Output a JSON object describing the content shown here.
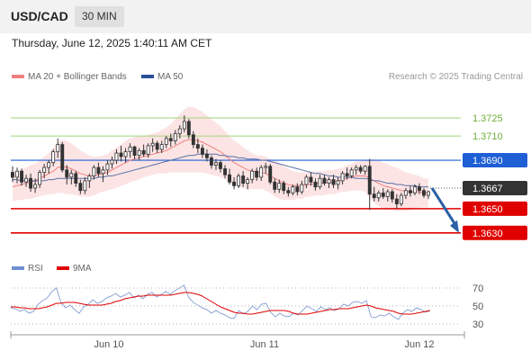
{
  "header": {
    "symbol": "USD/CAD",
    "timeframe": "30 MIN",
    "timestamp": "Thursday, June 12, 2025 1:40:11 AM CET"
  },
  "legend": {
    "ma20_label": "MA 20 + Bollinger Bands",
    "ma50_label": "MA 50",
    "credit": "Research © 2025 Trading Central",
    "rsi_label": "RSI",
    "rsi_ma_label": "9MA"
  },
  "colors": {
    "bull_candle": "#ffffff",
    "bear_candle": "#333333",
    "ma20": "#f08080",
    "ma50": "#5570a8",
    "bollinger_fill": "#fde4e4",
    "resistance_line": "#9ed47a",
    "pivot_line": "#1f5fd6",
    "support_line": "#e00000",
    "current_price": "#333333",
    "forecast_arrow": "#2b5fa6",
    "rsi_line": "#8fa6d6",
    "rsi_ma": "#e00000"
  },
  "chart_data": [
    {
      "type": "candlestick",
      "title": "USD/CAD 30 MIN",
      "x_ticks": [
        "Jun 10",
        "Jun 11",
        "Jun 12"
      ],
      "ylim": [
        1.3612,
        1.3748
      ],
      "levels": [
        {
          "value": 1.3725,
          "label": "1.3725",
          "kind": "resistance"
        },
        {
          "value": 1.371,
          "label": "1.3710",
          "kind": "resistance"
        },
        {
          "value": 1.369,
          "label": "1.3690",
          "kind": "pivot"
        },
        {
          "value": 1.3667,
          "label": "1.3667",
          "kind": "current"
        },
        {
          "value": 1.365,
          "label": "1.3650",
          "kind": "support"
        },
        {
          "value": 1.363,
          "label": "1.3630",
          "kind": "support"
        }
      ],
      "ohlc": [
        [
          1.368,
          1.3685,
          1.3672,
          1.3676
        ],
        [
          1.3676,
          1.3684,
          1.3671,
          1.3681
        ],
        [
          1.3681,
          1.3683,
          1.3669,
          1.3672
        ],
        [
          1.3672,
          1.3678,
          1.3668,
          1.3675
        ],
        [
          1.3675,
          1.3679,
          1.3664,
          1.3667
        ],
        [
          1.3667,
          1.3675,
          1.3663,
          1.367
        ],
        [
          1.367,
          1.3682,
          1.3667,
          1.368
        ],
        [
          1.368,
          1.3687,
          1.3675,
          1.3684
        ],
        [
          1.3684,
          1.369,
          1.3679,
          1.3688
        ],
        [
          1.3688,
          1.3699,
          1.3685,
          1.3697
        ],
        [
          1.3697,
          1.3708,
          1.3692,
          1.3703
        ],
        [
          1.3703,
          1.3705,
          1.368,
          1.3682
        ],
        [
          1.3682,
          1.3686,
          1.367,
          1.3676
        ],
        [
          1.3676,
          1.3682,
          1.367,
          1.3679
        ],
        [
          1.3679,
          1.3681,
          1.3668,
          1.3671
        ],
        [
          1.3671,
          1.3674,
          1.3662,
          1.3665
        ],
        [
          1.3665,
          1.3676,
          1.3662,
          1.3673
        ],
        [
          1.3673,
          1.3679,
          1.3667,
          1.3677
        ],
        [
          1.3677,
          1.3686,
          1.3674,
          1.3684
        ],
        [
          1.3684,
          1.3688,
          1.3676,
          1.3679
        ],
        [
          1.3679,
          1.3685,
          1.3672,
          1.3682
        ],
        [
          1.3682,
          1.369,
          1.3678,
          1.3687
        ],
        [
          1.3687,
          1.3693,
          1.3683,
          1.369
        ],
        [
          1.369,
          1.3699,
          1.3687,
          1.3696
        ],
        [
          1.3696,
          1.3702,
          1.3689,
          1.3693
        ],
        [
          1.3693,
          1.37,
          1.3688,
          1.3697
        ],
        [
          1.3697,
          1.3704,
          1.3692,
          1.3701
        ],
        [
          1.3701,
          1.3702,
          1.3691,
          1.3694
        ],
        [
          1.3694,
          1.37,
          1.369,
          1.3698
        ],
        [
          1.3698,
          1.3703,
          1.3693,
          1.3695
        ],
        [
          1.3695,
          1.3704,
          1.3692,
          1.3702
        ],
        [
          1.3702,
          1.3708,
          1.3697,
          1.3704
        ],
        [
          1.3704,
          1.3706,
          1.3696,
          1.3699
        ],
        [
          1.3699,
          1.3706,
          1.3696,
          1.3703
        ],
        [
          1.3703,
          1.371,
          1.37,
          1.3708
        ],
        [
          1.3708,
          1.3712,
          1.3701,
          1.3706
        ],
        [
          1.3706,
          1.3715,
          1.3703,
          1.3712
        ],
        [
          1.3712,
          1.3719,
          1.3708,
          1.3716
        ],
        [
          1.3716,
          1.3727,
          1.3713,
          1.3722
        ],
        [
          1.3722,
          1.3724,
          1.3708,
          1.3711
        ],
        [
          1.3711,
          1.3714,
          1.37,
          1.3703
        ],
        [
          1.3703,
          1.3708,
          1.3696,
          1.37
        ],
        [
          1.37,
          1.3703,
          1.3692,
          1.3695
        ],
        [
          1.3695,
          1.3699,
          1.3689,
          1.3692
        ],
        [
          1.3692,
          1.3694,
          1.3683,
          1.3686
        ],
        [
          1.3686,
          1.3691,
          1.3682,
          1.3688
        ],
        [
          1.3688,
          1.369,
          1.368,
          1.3683
        ],
        [
          1.3683,
          1.3686,
          1.3675,
          1.3678
        ],
        [
          1.3678,
          1.3683,
          1.367,
          1.3672
        ],
        [
          1.3672,
          1.3676,
          1.3666,
          1.3669
        ],
        [
          1.3669,
          1.3679,
          1.3667,
          1.3677
        ],
        [
          1.3677,
          1.3681,
          1.3668,
          1.3671
        ],
        [
          1.3671,
          1.3676,
          1.3666,
          1.3674
        ],
        [
          1.3674,
          1.3683,
          1.3671,
          1.3681
        ],
        [
          1.3681,
          1.3684,
          1.3673,
          1.3676
        ],
        [
          1.3676,
          1.3686,
          1.3673,
          1.3684
        ],
        [
          1.3684,
          1.3688,
          1.3679,
          1.3685
        ],
        [
          1.3685,
          1.3687,
          1.367,
          1.3672
        ],
        [
          1.3672,
          1.3675,
          1.3663,
          1.3666
        ],
        [
          1.3666,
          1.3674,
          1.3663,
          1.3671
        ],
        [
          1.3671,
          1.3673,
          1.3662,
          1.3665
        ],
        [
          1.3665,
          1.3668,
          1.366,
          1.3663
        ],
        [
          1.3663,
          1.367,
          1.3661,
          1.3668
        ],
        [
          1.3668,
          1.3671,
          1.3661,
          1.3664
        ],
        [
          1.3664,
          1.3673,
          1.3662,
          1.367
        ],
        [
          1.367,
          1.3678,
          1.3667,
          1.3676
        ],
        [
          1.3676,
          1.368,
          1.3669,
          1.3672
        ],
        [
          1.3672,
          1.3675,
          1.3665,
          1.3668
        ],
        [
          1.3668,
          1.3678,
          1.3666,
          1.3675
        ],
        [
          1.3675,
          1.3678,
          1.3669,
          1.3671
        ],
        [
          1.3671,
          1.3676,
          1.3667,
          1.3674
        ],
        [
          1.3674,
          1.3678,
          1.3667,
          1.367
        ],
        [
          1.367,
          1.3676,
          1.3666,
          1.3673
        ],
        [
          1.3673,
          1.3681,
          1.367,
          1.3679
        ],
        [
          1.3679,
          1.3684,
          1.3674,
          1.3677
        ],
        [
          1.3677,
          1.3684,
          1.3675,
          1.3682
        ],
        [
          1.3682,
          1.3686,
          1.3678,
          1.3684
        ],
        [
          1.3684,
          1.3686,
          1.3679,
          1.3681
        ],
        [
          1.3681,
          1.3686,
          1.3678,
          1.3685
        ],
        [
          1.3685,
          1.3691,
          1.3649,
          1.3662
        ],
        [
          1.3662,
          1.3668,
          1.3656,
          1.3659
        ],
        [
          1.3659,
          1.3665,
          1.3656,
          1.3663
        ],
        [
          1.3663,
          1.3667,
          1.3658,
          1.366
        ],
        [
          1.366,
          1.3666,
          1.3656,
          1.3664
        ],
        [
          1.3664,
          1.3666,
          1.3655,
          1.3658
        ],
        [
          1.3658,
          1.3662,
          1.365,
          1.3654
        ],
        [
          1.3654,
          1.3663,
          1.3652,
          1.3661
        ],
        [
          1.3661,
          1.3667,
          1.3658,
          1.3665
        ],
        [
          1.3665,
          1.3669,
          1.366,
          1.3663
        ],
        [
          1.3663,
          1.367,
          1.3661,
          1.3668
        ],
        [
          1.3668,
          1.3671,
          1.3662,
          1.3665
        ],
        [
          1.3665,
          1.3667,
          1.3659,
          1.3661
        ],
        [
          1.3661,
          1.3665,
          1.3658,
          1.3664
        ]
      ],
      "ma20": [
        1.3668,
        1.3669,
        1.367,
        1.3671,
        1.3672,
        1.3673,
        1.3675,
        1.3677,
        1.3679,
        1.3681,
        1.3684,
        1.3685,
        1.3684,
        1.3683,
        1.3681,
        1.3679,
        1.3678,
        1.3677,
        1.3677,
        1.3678,
        1.3679,
        1.368,
        1.3682,
        1.3684,
        1.3686,
        1.3688,
        1.369,
        1.3691,
        1.3692,
        1.3693,
        1.3694,
        1.3695,
        1.3696,
        1.3697,
        1.3698,
        1.37,
        1.3702,
        1.3704,
        1.3706,
        1.3707,
        1.3707,
        1.3706,
        1.3705,
        1.3703,
        1.3701,
        1.3699,
        1.3697,
        1.3694,
        1.3691,
        1.3688,
        1.3686,
        1.3684,
        1.3682,
        1.3681,
        1.368,
        1.368,
        1.3679,
        1.3677,
        1.3675,
        1.3673,
        1.3671,
        1.367,
        1.3669,
        1.3669,
        1.3669,
        1.367,
        1.367,
        1.3671,
        1.3671,
        1.3671,
        1.3672,
        1.3672,
        1.3673,
        1.3674,
        1.3675,
        1.3676,
        1.3677,
        1.3677,
        1.3677,
        1.3675,
        1.3673,
        1.3671,
        1.3669,
        1.3668,
        1.3667,
        1.3666,
        1.3665,
        1.3664,
        1.3664,
        1.3664,
        1.3664,
        1.3663,
        1.3663
      ],
      "bb_width": [
        0.0012,
        0.0012,
        0.0013,
        0.0013,
        0.0014,
        0.0014,
        0.0015,
        0.0016,
        0.0017,
        0.0019,
        0.0021,
        0.0022,
        0.0022,
        0.0021,
        0.002,
        0.0019,
        0.0018,
        0.0017,
        0.0016,
        0.0015,
        0.0015,
        0.0015,
        0.0016,
        0.0017,
        0.0017,
        0.0018,
        0.0018,
        0.0018,
        0.0018,
        0.0017,
        0.0017,
        0.0017,
        0.0017,
        0.0018,
        0.0019,
        0.002,
        0.0022,
        0.0024,
        0.0026,
        0.0027,
        0.0027,
        0.0026,
        0.0025,
        0.0024,
        0.0023,
        0.0022,
        0.0021,
        0.002,
        0.0019,
        0.0018,
        0.0018,
        0.0017,
        0.0016,
        0.0015,
        0.0014,
        0.0014,
        0.0014,
        0.0014,
        0.0015,
        0.0015,
        0.0014,
        0.0013,
        0.0012,
        0.0011,
        0.0011,
        0.001,
        0.001,
        0.001,
        0.001,
        0.001,
        0.001,
        0.001,
        0.001,
        0.001,
        0.0011,
        0.0011,
        0.0012,
        0.0012,
        0.0013,
        0.0016,
        0.0018,
        0.0019,
        0.0019,
        0.0019,
        0.0018,
        0.0018,
        0.0017,
        0.0016,
        0.0015,
        0.0014,
        0.0013,
        0.0012,
        0.0012
      ],
      "ma50": [
        1.3674,
        1.3674,
        1.3673,
        1.3673,
        1.3673,
        1.3673,
        1.3673,
        1.3673,
        1.3674,
        1.3674,
        1.3675,
        1.3675,
        1.3675,
        1.3675,
        1.3675,
        1.3675,
        1.3675,
        1.3675,
        1.3675,
        1.3676,
        1.3676,
        1.3677,
        1.3677,
        1.3678,
        1.3679,
        1.368,
        1.3681,
        1.3682,
        1.3683,
        1.3684,
        1.3685,
        1.3686,
        1.3687,
        1.3688,
        1.3689,
        1.369,
        1.3691,
        1.3692,
        1.3693,
        1.3694,
        1.3694,
        1.3695,
        1.3695,
        1.3695,
        1.3695,
        1.3695,
        1.3694,
        1.3694,
        1.3693,
        1.3693,
        1.3692,
        1.3692,
        1.3691,
        1.3691,
        1.3691,
        1.369,
        1.369,
        1.3689,
        1.3688,
        1.3687,
        1.3686,
        1.3685,
        1.3684,
        1.3683,
        1.3682,
        1.3681,
        1.368,
        1.3679,
        1.3679,
        1.3678,
        1.3677,
        1.3677,
        1.3676,
        1.3676,
        1.3676,
        1.3676,
        1.3675,
        1.3675,
        1.3675,
        1.3674,
        1.3673,
        1.3673,
        1.3672,
        1.3671,
        1.3671,
        1.367,
        1.367,
        1.3669,
        1.3669,
        1.3669,
        1.3668,
        1.3668,
        1.3668
      ],
      "forecast": {
        "from": 1.3667,
        "to": 1.363
      }
    },
    {
      "type": "line",
      "title": "RSI",
      "ylim": [
        20,
        80
      ],
      "y_ticks": [
        70,
        50,
        30
      ],
      "series": [
        {
          "name": "RSI",
          "values": [
            48,
            47,
            44,
            46,
            42,
            44,
            52,
            56,
            59,
            66,
            70,
            54,
            48,
            51,
            46,
            42,
            49,
            52,
            57,
            53,
            55,
            59,
            61,
            64,
            60,
            62,
            65,
            59,
            62,
            58,
            63,
            65,
            60,
            63,
            66,
            63,
            67,
            70,
            73,
            60,
            54,
            51,
            48,
            46,
            42,
            45,
            42,
            40,
            37,
            36,
            45,
            41,
            44,
            50,
            46,
            52,
            53,
            43,
            38,
            42,
            39,
            38,
            42,
            40,
            45,
            50,
            47,
            44,
            49,
            46,
            48,
            45,
            47,
            52,
            50,
            54,
            55,
            53,
            56,
            38,
            37,
            40,
            39,
            42,
            38,
            35,
            42,
            46,
            44,
            48,
            46,
            43,
            45
          ]
        },
        {
          "name": "9MA",
          "values": [
            49,
            49,
            48,
            48,
            47,
            47,
            47,
            48,
            49,
            51,
            53,
            53,
            54,
            54,
            54,
            53,
            52,
            51,
            51,
            51,
            51,
            52,
            53,
            55,
            56,
            58,
            59,
            60,
            61,
            61,
            62,
            62,
            62,
            62,
            62,
            62,
            63,
            64,
            65,
            65,
            64,
            63,
            61,
            58,
            55,
            52,
            49,
            47,
            45,
            43,
            42,
            42,
            41,
            41,
            42,
            43,
            44,
            45,
            45,
            45,
            45,
            44,
            42,
            41,
            41,
            41,
            42,
            43,
            44,
            45,
            46,
            46,
            47,
            47,
            47,
            48,
            49,
            50,
            51,
            50,
            48,
            47,
            46,
            45,
            44,
            42,
            41,
            41,
            41,
            42,
            43,
            44,
            45
          ]
        }
      ]
    }
  ]
}
